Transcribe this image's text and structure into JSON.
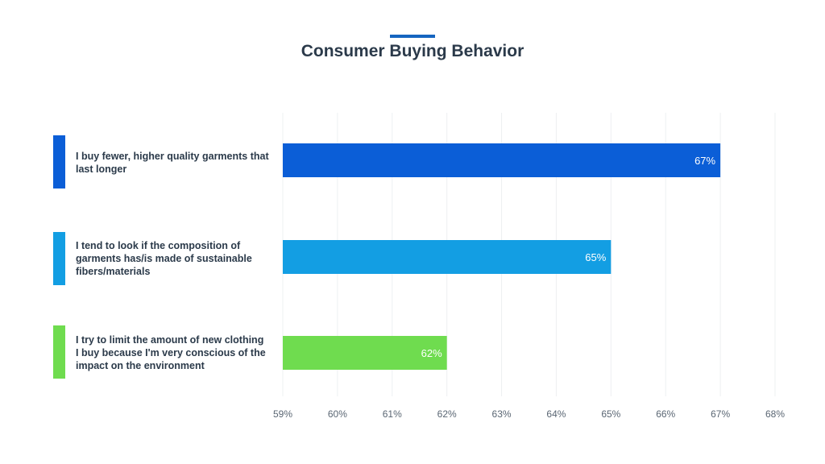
{
  "title": "Consumer Buying Behavior",
  "accent_color": "#1565c0",
  "legend": [
    {
      "text": "I buy fewer, higher quality garments that last longer",
      "color": "#0b5ed7"
    },
    {
      "text": "I tend to look if the composition of garments has/is made of sustainable fibers/materials",
      "color": "#139ee3"
    },
    {
      "text": "I try to limit the amount of new clothing I buy because I'm very conscious of the impact on the environment",
      "color": "#6fdc4f"
    }
  ],
  "chart_data": {
    "type": "bar",
    "orientation": "horizontal",
    "title": "Consumer Buying Behavior",
    "categories": [
      "I buy fewer, higher quality garments that last longer",
      "I tend to look if the composition of garments has/is made of sustainable fibers/materials",
      "I try to limit the amount of new clothing I buy because I'm very conscious of the impact on the environment"
    ],
    "values": [
      67,
      65,
      62
    ],
    "data_labels": [
      "67%",
      "65%",
      "62%"
    ],
    "colors": [
      "#0b5ed7",
      "#139ee3",
      "#6fdc4f"
    ],
    "xlim": [
      59,
      68
    ],
    "xticks": [
      "59%",
      "60%",
      "61%",
      "62%",
      "63%",
      "64%",
      "65%",
      "66%",
      "67%",
      "68%"
    ],
    "xlabel": "",
    "ylabel": "",
    "grid": true
  }
}
